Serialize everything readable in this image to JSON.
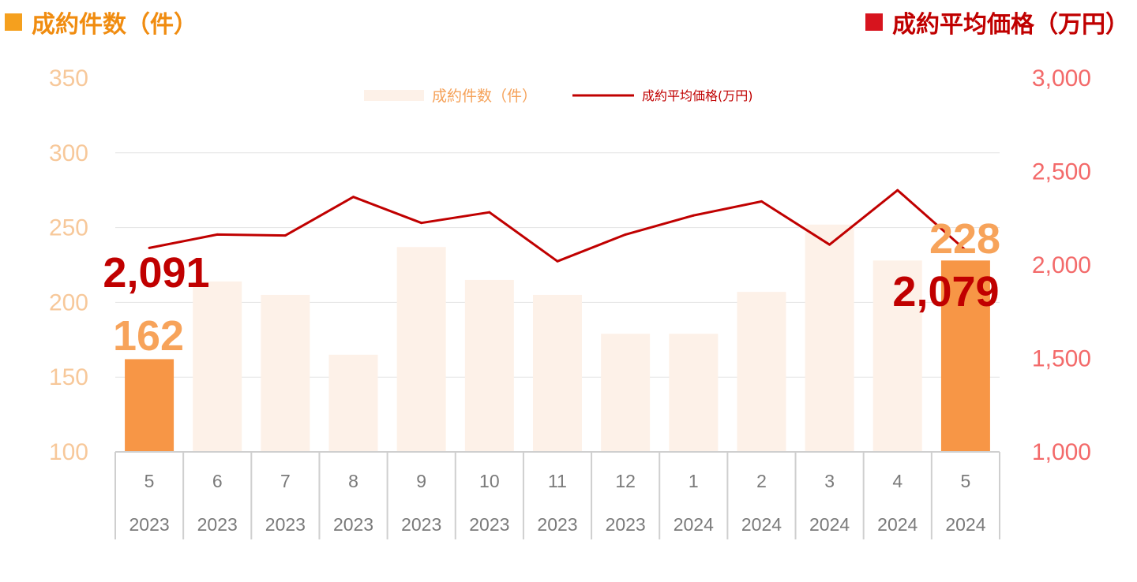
{
  "titles": {
    "left": "成約件数（件）",
    "right": "成約平均価格（万円）"
  },
  "colors": {
    "bar_highlight": "#f79646",
    "bar_normal": "#fdf1e8",
    "line": "#c00000",
    "left_axis": "#f7c89a",
    "right_axis": "#f36a6a"
  },
  "chart_data": {
    "type": "bar",
    "categories": [
      {
        "month": "5",
        "year": "2023"
      },
      {
        "month": "6",
        "year": "2023"
      },
      {
        "month": "7",
        "year": "2023"
      },
      {
        "month": "8",
        "year": "2023"
      },
      {
        "month": "9",
        "year": "2023"
      },
      {
        "month": "10",
        "year": "2023"
      },
      {
        "month": "11",
        "year": "2023"
      },
      {
        "month": "12",
        "year": "2023"
      },
      {
        "month": "1",
        "year": "2024"
      },
      {
        "month": "2",
        "year": "2024"
      },
      {
        "month": "3",
        "year": "2024"
      },
      {
        "month": "4",
        "year": "2024"
      },
      {
        "month": "5",
        "year": "2024"
      }
    ],
    "series": [
      {
        "name": "成約件数（件）",
        "type": "bar",
        "axis": "left",
        "values": [
          162,
          214,
          205,
          165,
          237,
          215,
          205,
          179,
          179,
          207,
          252,
          228,
          228
        ],
        "highlight": [
          0,
          12
        ]
      },
      {
        "name": "成約平均価格(万円)",
        "type": "line",
        "axis": "right",
        "values": [
          2091,
          2163,
          2158,
          2364,
          2225,
          2282,
          2020,
          2163,
          2265,
          2340,
          2109,
          2400,
          2079
        ]
      }
    ],
    "y_left": {
      "min": 100,
      "max": 350,
      "ticks": [
        "100",
        "150",
        "200",
        "250",
        "300",
        "350"
      ]
    },
    "y_right": {
      "min": 1000,
      "max": 3000,
      "ticks": [
        "1,000",
        "1,500",
        "2,000",
        "2,500",
        "3,000"
      ]
    },
    "data_labels": {
      "bar_first": "162",
      "bar_last": "228",
      "line_first": "2,091",
      "line_last": "2,079"
    },
    "grid": true,
    "legend_position": "top-center"
  }
}
